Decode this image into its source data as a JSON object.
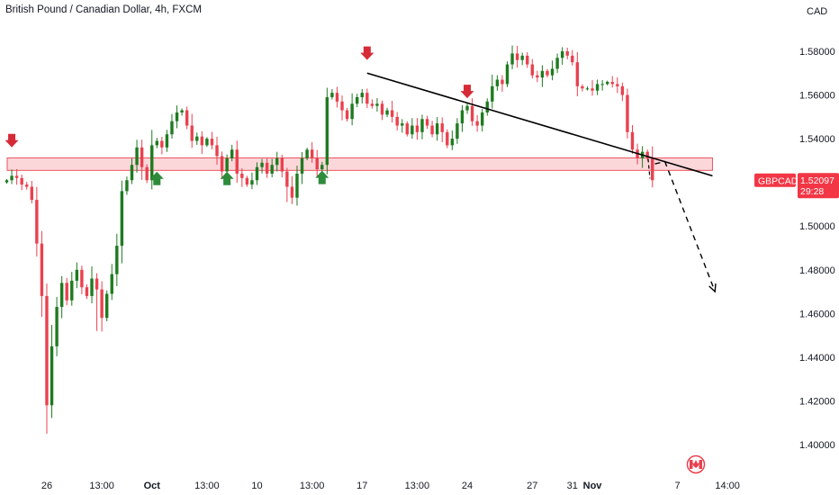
{
  "header": {
    "title": "British Pound / Canadian Dollar, 4h, FXCM"
  },
  "axis": {
    "currency": "CAD"
  },
  "colors": {
    "up": "#089981",
    "up_candle": "#1e7b20",
    "down": "#e9414f",
    "support_fill": "#fbd3d6",
    "support_stroke": "#e9414f",
    "trendline": "#000000",
    "price_tag": "#f23645"
  },
  "price_tag": {
    "symbol": "GBPCAD",
    "price": "1.52097",
    "countdown": "29:28"
  },
  "icons": {
    "flag": "canada-flag-icon"
  },
  "chart_data": {
    "type": "candlestick",
    "title": "British Pound / Canadian Dollar, 4h, FXCM",
    "ylabel": "CAD",
    "ylim": [
      1.3895,
      1.594
    ],
    "y_ticks": [
      "1.58000",
      "1.56000",
      "1.54000",
      "1.52000",
      "1.50000",
      "1.48000",
      "1.46000",
      "1.44000",
      "1.42000",
      "1.40000"
    ],
    "y_tick_values": [
      1.58,
      1.56,
      1.54,
      1.52,
      1.5,
      1.48,
      1.46,
      1.44,
      1.42,
      1.4
    ],
    "x_ticks": [
      {
        "label": "26",
        "index": 8,
        "bold": false
      },
      {
        "label": "13:00",
        "index": 19,
        "bold": false
      },
      {
        "label": "Oct",
        "index": 29,
        "bold": true
      },
      {
        "label": "13:00",
        "index": 40,
        "bold": false
      },
      {
        "label": "10",
        "index": 50,
        "bold": false
      },
      {
        "label": "13:00",
        "index": 61,
        "bold": false
      },
      {
        "label": "17",
        "index": 71,
        "bold": false
      },
      {
        "label": "13:00",
        "index": 82,
        "bold": false
      },
      {
        "label": "24",
        "index": 92,
        "bold": false
      },
      {
        "label": "27",
        "index": 105,
        "bold": false
      },
      {
        "label": "31",
        "index": 113,
        "bold": false
      },
      {
        "label": "Nov",
        "index": 117,
        "bold": true
      },
      {
        "label": "7",
        "index": 134,
        "bold": false
      },
      {
        "label": "14:00",
        "index": 144,
        "bold": false
      }
    ],
    "closes": [
      1.521,
      1.523,
      1.522,
      1.519,
      1.518,
      1.512,
      1.492,
      1.468,
      1.418,
      1.445,
      1.463,
      1.474,
      1.466,
      1.475,
      1.48,
      1.472,
      1.468,
      1.476,
      1.471,
      1.458,
      1.469,
      1.478,
      1.491,
      1.516,
      1.521,
      1.528,
      1.536,
      1.527,
      1.521,
      1.537,
      1.539,
      1.536,
      1.542,
      1.548,
      1.552,
      1.553,
      1.546,
      1.539,
      1.541,
      1.537,
      1.54,
      1.537,
      1.532,
      1.525,
      1.531,
      1.535,
      1.524,
      1.522,
      1.519,
      1.521,
      1.527,
      1.529,
      1.524,
      1.528,
      1.531,
      1.525,
      1.518,
      1.513,
      1.524,
      1.531,
      1.535,
      1.531,
      1.526,
      1.528,
      1.559,
      1.561,
      1.557,
      1.553,
      1.549,
      1.556,
      1.559,
      1.561,
      1.556,
      1.555,
      1.556,
      1.551,
      1.553,
      1.55,
      1.546,
      1.547,
      1.542,
      1.546,
      1.543,
      1.549,
      1.546,
      1.542,
      1.547,
      1.543,
      1.537,
      1.54,
      1.547,
      1.553,
      1.555,
      1.548,
      1.546,
      1.552,
      1.557,
      1.564,
      1.567,
      1.565,
      1.574,
      1.579,
      1.576,
      1.578,
      1.574,
      1.569,
      1.568,
      1.571,
      1.569,
      1.572,
      1.577,
      1.58,
      1.578,
      1.575,
      1.564,
      1.563,
      1.563,
      1.562,
      1.565,
      1.565,
      1.566,
      1.565,
      1.564,
      1.56,
      1.543,
      1.535,
      1.531,
      1.534,
      1.531,
      1.521
    ],
    "trend": [
      1.521,
      1.523,
      1.522,
      1.519,
      1.518,
      1.512,
      1.492,
      1.468,
      1.418,
      1.445,
      1.463,
      1.474,
      1.466,
      1.475,
      1.48,
      1.472,
      1.468,
      1.476,
      1.471,
      1.458,
      1.469,
      1.478,
      1.491,
      1.516,
      1.521,
      1.528,
      1.536,
      1.527,
      1.521,
      1.537,
      1.539,
      1.536,
      1.542,
      1.548,
      1.552,
      1.553,
      1.546,
      1.539,
      1.541,
      1.537,
      1.54,
      1.537,
      1.532,
      1.525,
      1.531,
      1.535,
      1.524,
      1.522,
      1.519,
      1.521,
      1.527,
      1.529,
      1.524,
      1.528,
      1.531,
      1.525,
      1.518,
      1.513,
      1.524,
      1.531,
      1.535,
      1.531,
      1.526,
      1.528,
      1.559,
      1.561,
      1.557,
      1.553,
      1.549,
      1.556,
      1.559,
      1.561,
      1.556,
      1.555,
      1.556,
      1.551,
      1.553,
      1.55,
      1.546,
      1.547,
      1.542,
      1.546,
      1.543,
      1.549,
      1.546,
      1.542,
      1.547,
      1.543,
      1.537,
      1.54,
      1.547,
      1.553,
      1.555,
      1.548,
      1.546,
      1.552,
      1.557,
      1.564,
      1.567,
      1.565,
      1.574,
      1.579,
      1.576,
      1.578,
      1.574,
      1.569,
      1.568,
      1.571,
      1.569,
      1.572,
      1.577,
      1.58,
      1.578,
      1.575,
      1.564,
      1.563,
      1.563,
      1.562,
      1.565,
      1.565,
      1.566,
      1.565,
      1.564,
      1.56,
      1.543,
      1.535,
      1.531,
      1.534,
      1.531,
      1.521
    ],
    "last_price": 1.52097,
    "support_zone": [
      1.5255,
      1.5312
    ],
    "trendline": {
      "from": [
        72,
        1.57
      ],
      "to": [
        141,
        1.523
      ]
    },
    "projection": [
      [
        129.5,
        1.5285
      ],
      [
        131.5,
        1.5295
      ],
      [
        141.5,
        1.47
      ]
    ],
    "sell_arrows": [
      {
        "index": 1,
        "price": 1.5385
      },
      {
        "index": 72,
        "price": 1.5785
      },
      {
        "index": 92,
        "price": 1.561
      }
    ],
    "buy_arrows": [
      {
        "index": 30,
        "price": 1.522
      },
      {
        "index": 44,
        "price": 1.522
      },
      {
        "index": 63,
        "price": 1.5225
      }
    ]
  }
}
